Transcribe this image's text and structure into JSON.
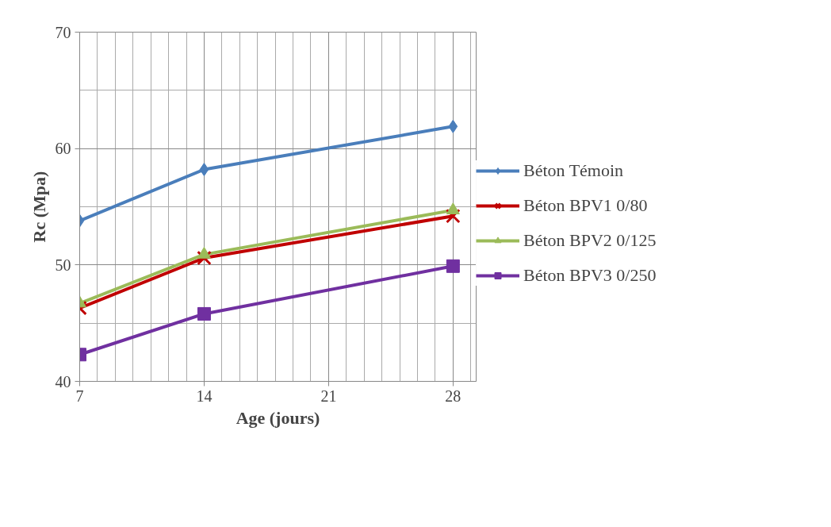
{
  "chart_data": {
    "type": "line",
    "xlabel": "Age (jours)",
    "ylabel": "Rc (Mpa)",
    "x": [
      7,
      14,
      28
    ],
    "series": [
      {
        "name": "Béton Témoin",
        "color": "#4a7ebb",
        "marker": "diamond",
        "values": [
          53.8,
          58.2,
          61.9
        ]
      },
      {
        "name": "Béton BPV1 0/80",
        "color": "#c00000",
        "marker": "cross",
        "values": [
          46.3,
          50.6,
          54.2
        ]
      },
      {
        "name": "Béton BPV2 0/125",
        "color": "#9bbb59",
        "marker": "triangle",
        "values": [
          46.7,
          50.9,
          54.7
        ]
      },
      {
        "name": "Béton BPV3 0/250",
        "color": "#7030a0",
        "marker": "square",
        "values": [
          42.3,
          45.8,
          49.9
        ]
      }
    ],
    "xlim": [
      7,
      29.3
    ],
    "xticks": [
      7,
      14,
      21,
      28
    ],
    "ylim": [
      40,
      70
    ],
    "yticks": [
      40,
      50,
      60,
      70
    ],
    "grid": true,
    "legend": "right",
    "line_style": "solid"
  }
}
